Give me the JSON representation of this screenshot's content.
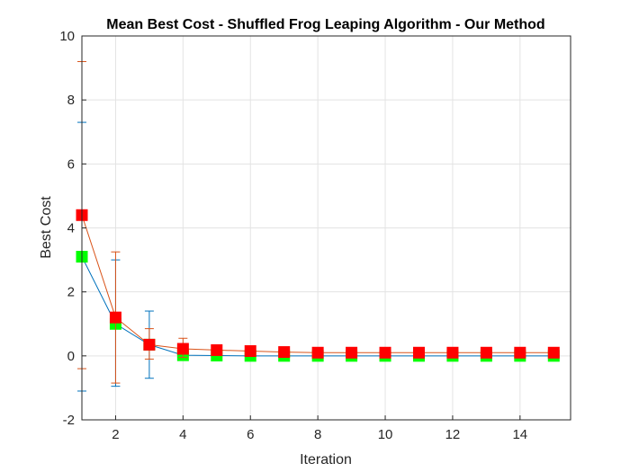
{
  "chart_data": {
    "type": "line",
    "title": "Mean Best Cost - Shuffled Frog Leaping Algorithm - Our Method",
    "xlabel": "Iteration",
    "ylabel": "Best Cost",
    "xlim": [
      1,
      15.5
    ],
    "ylim": [
      -2,
      10
    ],
    "x_ticks": [
      2,
      4,
      6,
      8,
      10,
      12,
      14
    ],
    "y_ticks": [
      -2,
      0,
      2,
      4,
      6,
      8,
      10
    ],
    "grid": true,
    "x": [
      1,
      2,
      3,
      4,
      5,
      6,
      7,
      8,
      9,
      10,
      11,
      12,
      13,
      14,
      15
    ],
    "series": [
      {
        "line_color": "#0072BD",
        "marker_color": "#00FF00",
        "values": [
          3.1,
          1.0,
          0.35,
          0.02,
          0.01,
          0.0,
          0.0,
          0.0,
          0.0,
          0.0,
          0.0,
          0.0,
          0.0,
          0.0,
          0.0
        ],
        "error_low": [
          -1.1,
          -0.95,
          -0.7,
          -0.05,
          0,
          0,
          0,
          0,
          0,
          0,
          0,
          0,
          0,
          0,
          0
        ],
        "error_high": [
          7.3,
          3.0,
          1.4,
          0.08,
          0,
          0,
          0,
          0,
          0,
          0,
          0,
          0,
          0,
          0,
          0
        ]
      },
      {
        "line_color": "#D95319",
        "marker_color": "#FF0000",
        "values": [
          4.4,
          1.2,
          0.35,
          0.22,
          0.18,
          0.15,
          0.12,
          0.1,
          0.1,
          0.1,
          0.1,
          0.1,
          0.1,
          0.1,
          0.1
        ],
        "error_low": [
          -0.4,
          -0.85,
          -0.1,
          -0.05,
          0.1,
          0.08,
          0.06,
          0.05,
          0.05,
          0.05,
          0.05,
          0.05,
          0.05,
          0.05,
          0.05
        ],
        "error_high": [
          9.2,
          3.25,
          0.85,
          0.55,
          0.28,
          0.22,
          0.18,
          0.15,
          0.15,
          0.15,
          0.15,
          0.15,
          0.15,
          0.15,
          0.15
        ]
      }
    ]
  }
}
